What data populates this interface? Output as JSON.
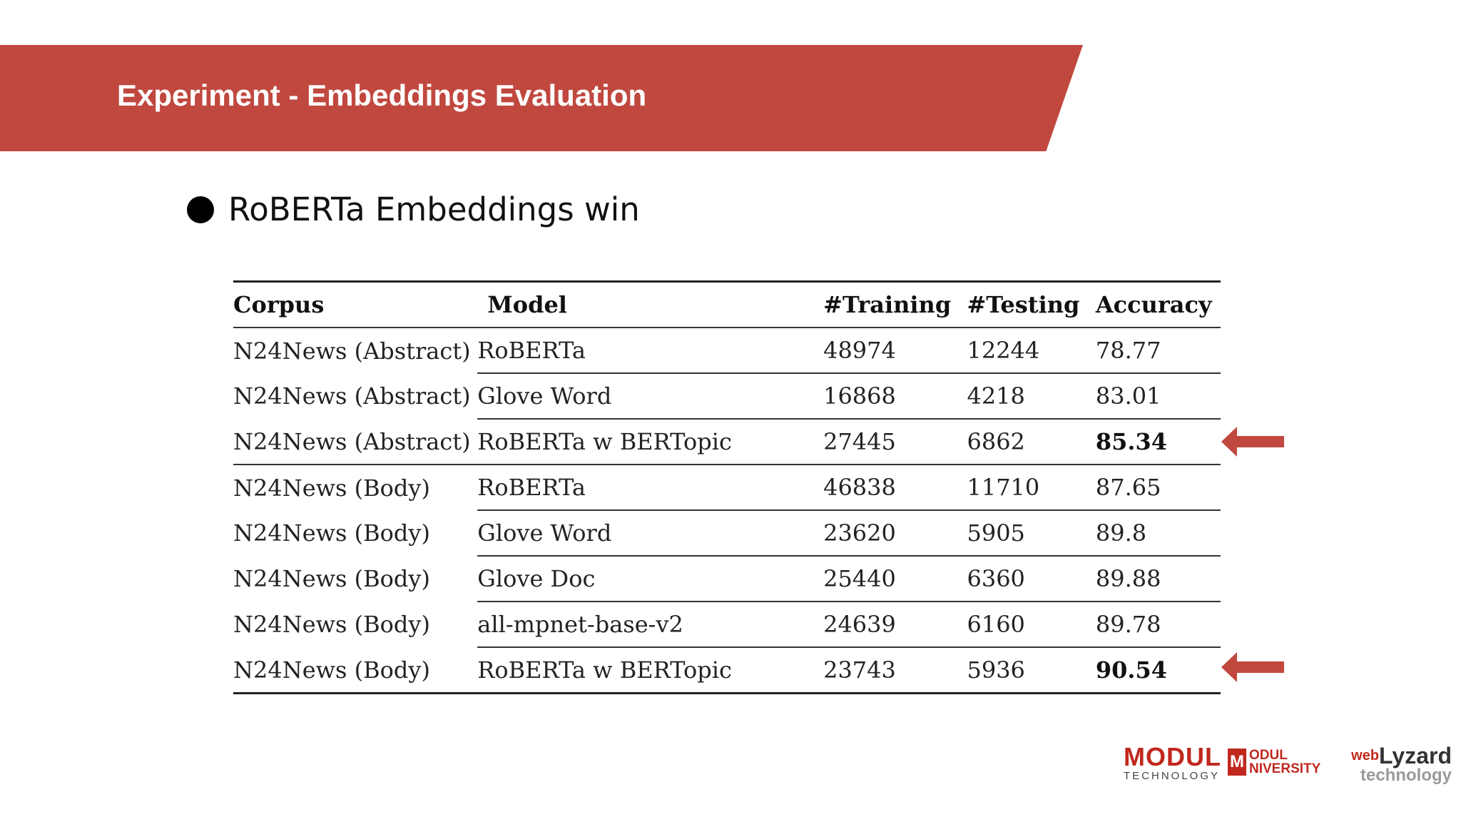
{
  "slide": {
    "title": "Experiment - Embeddings Evaluation",
    "bullet": "RoBERTa Embeddings win"
  },
  "table": {
    "headers": [
      "Corpus",
      "Model",
      "#Training",
      "#Testing",
      "Accuracy"
    ],
    "rows": [
      {
        "corpus": "N24News (Abstract)",
        "model": "RoBERTa",
        "training": "48974",
        "testing": "12244",
        "accuracy": "78.77"
      },
      {
        "corpus": "N24News (Abstract)",
        "model": "Glove Word",
        "training": "16868",
        "testing": "4218",
        "accuracy": "83.01"
      },
      {
        "corpus": "N24News (Abstract)",
        "model": "RoBERTa w BERTopic",
        "training": "27445",
        "testing": "6862",
        "accuracy": "85.34"
      },
      {
        "corpus": "N24News (Body)",
        "model": "RoBERTa",
        "training": "46838",
        "testing": "11710",
        "accuracy": "87.65"
      },
      {
        "corpus": "N24News (Body)",
        "model": "Glove Word",
        "training": "23620",
        "testing": "5905",
        "accuracy": "89.8"
      },
      {
        "corpus": "N24News (Body)",
        "model": "Glove Doc",
        "training": "25440",
        "testing": "6360",
        "accuracy": "89.88"
      },
      {
        "corpus": "N24News (Body)",
        "model": "all-mpnet-base-v2",
        "training": "24639",
        "testing": "6160",
        "accuracy": "89.78"
      },
      {
        "corpus": "N24News (Body)",
        "model": "RoBERTa w BERTopic",
        "training": "23743",
        "testing": "5936",
        "accuracy": "90.54"
      }
    ]
  },
  "logos": {
    "modul_technology": {
      "main": "MODUL",
      "sub": "TECHNOLOGY"
    },
    "modul_university": {
      "mark": "M",
      "line1": "ODUL",
      "line2": "NIVERSITY"
    },
    "weblyzard": {
      "prefix": "web",
      "main": "Lyzard",
      "sub": "technology"
    }
  },
  "colors": {
    "banner": "#c0483f",
    "arrow": "#c0483f",
    "logo_red": "#c0281e"
  },
  "icons": {
    "bullet": "filled-circle",
    "highlight_markers": "left-arrow"
  }
}
